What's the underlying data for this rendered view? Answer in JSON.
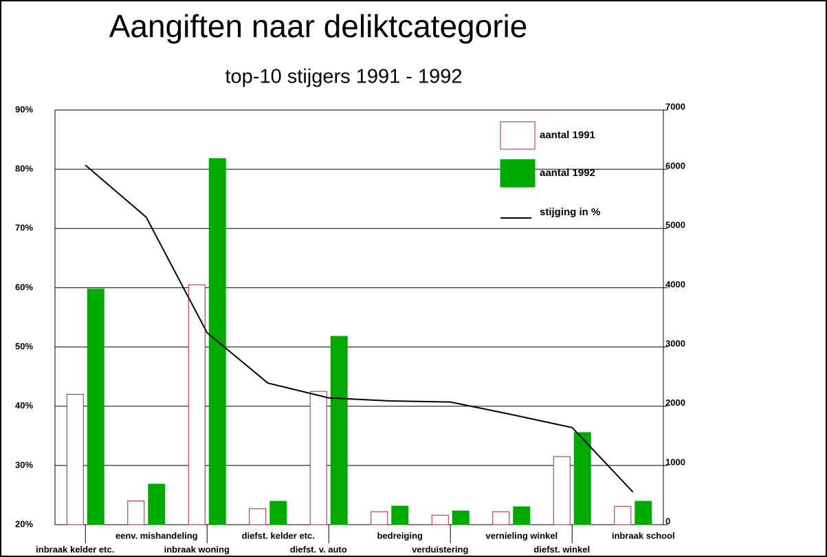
{
  "chart_data": {
    "type": "bar-line",
    "title": "Aangiften naar deliktcategorie",
    "subtitle": "top-10 stijgers 1991 - 1992",
    "categories": [
      "inbraak kelder etc.",
      "eenv. mishandeling",
      "inbraak woning",
      "diefst. kelder etc.",
      "diefst. v. auto",
      "bedreiging",
      "verduistering",
      "vernieling winkel",
      "diefst. winkel",
      "inbraak school"
    ],
    "series": [
      {
        "name": "aantal 1991",
        "type": "bar",
        "color": "#b22222",
        "filled": false,
        "axis": "y2",
        "values": [
          2200,
          400,
          4050,
          270,
          2250,
          220,
          160,
          220,
          1150,
          310
        ]
      },
      {
        "name": "aantal 1992",
        "type": "bar",
        "color": "#00aa00",
        "filled": true,
        "axis": "y2",
        "values": [
          3980,
          685,
          6180,
          395,
          3180,
          314,
          232,
          302,
          1556,
          395
        ]
      },
      {
        "name": "stijging in %",
        "type": "line",
        "color": "#000000",
        "axis": "y",
        "values": [
          80.7,
          71.9,
          52.4,
          43.9,
          41.4,
          40.9,
          40.7,
          38.6,
          36.4,
          25.5
        ]
      }
    ],
    "ylim": [
      20,
      90
    ],
    "yticks": [
      {
        "value": 20,
        "label": "20%"
      },
      {
        "value": 30,
        "label": "30%"
      },
      {
        "value": 40,
        "label": "40%"
      },
      {
        "value": 50,
        "label": "50%"
      },
      {
        "value": 60,
        "label": "60%"
      },
      {
        "value": 70,
        "label": "70%"
      },
      {
        "value": 80,
        "label": "80%"
      },
      {
        "value": 90,
        "label": "90%"
      }
    ],
    "y2lim": [
      0,
      7000
    ],
    "y2ticks": [
      0,
      1000,
      2000,
      3000,
      4000,
      5000,
      6000,
      7000
    ],
    "grid": true,
    "legend": "top-right"
  }
}
